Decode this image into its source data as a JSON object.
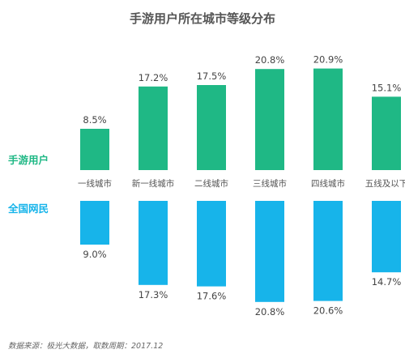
{
  "chart_data": {
    "type": "bar",
    "title": "手游用户所在城市等级分布",
    "categories": [
      "一线城市",
      "新一线城市",
      "二线城市",
      "三线城市",
      "四线城市",
      "五线及以下"
    ],
    "series": [
      {
        "name": "手游用户",
        "values": [
          8.5,
          17.2,
          17.5,
          20.8,
          20.9,
          15.1
        ],
        "labels": [
          "8.5%",
          "17.2%",
          "17.5%",
          "20.8%",
          "20.9%",
          "15.1%"
        ],
        "color": "#1fb885",
        "direction": "up"
      },
      {
        "name": "全国网民",
        "values": [
          9.0,
          17.3,
          17.6,
          20.8,
          20.6,
          14.7
        ],
        "labels": [
          "9.0%",
          "17.3%",
          "17.6%",
          "20.8%",
          "20.6%",
          "14.7%"
        ],
        "color": "#17b4ea",
        "direction": "down"
      }
    ],
    "unit": "%",
    "ylim": [
      0,
      21
    ],
    "grid": false,
    "legend": "left"
  },
  "source": "数据来源：极光大数据，取数周期：2017.12"
}
